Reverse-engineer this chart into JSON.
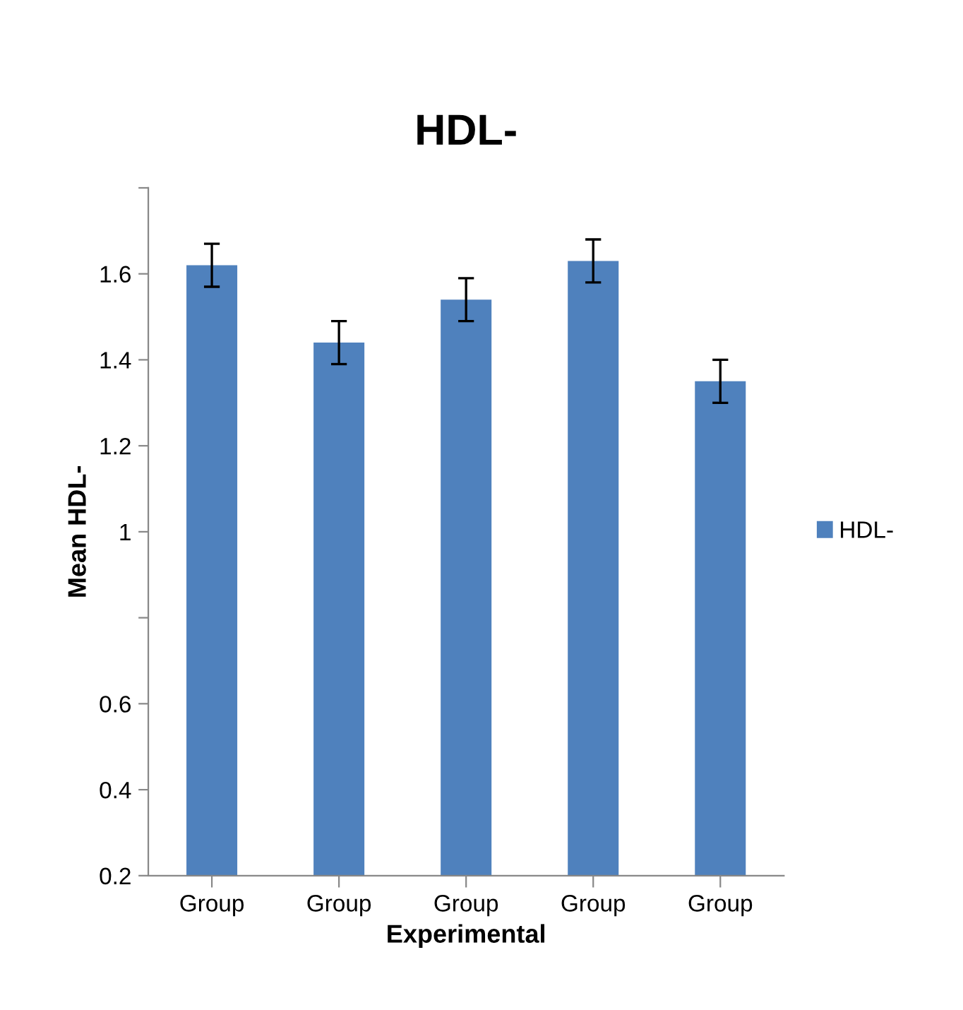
{
  "chart_data": {
    "type": "bar",
    "title": "HDL-",
    "xlabel": "Experimental",
    "ylabel": "Mean HDL-",
    "categories": [
      "Group",
      "Group",
      "Group",
      "Group",
      "Group"
    ],
    "series": [
      {
        "name": "HDL-",
        "color": "#4f81bd",
        "values": [
          1.62,
          1.44,
          1.54,
          1.63,
          1.35
        ],
        "errors": [
          0.05,
          0.05,
          0.05,
          0.05,
          0.05
        ]
      }
    ],
    "ylim": [
      0.2,
      1.8
    ],
    "yticks": [
      0.2,
      0.4,
      0.6,
      {
        "value": 0.8,
        "label": null
      },
      1,
      1.2,
      1.4,
      1.6,
      {
        "value": 1.8,
        "label": null
      }
    ],
    "grid": false,
    "legend": "right"
  }
}
